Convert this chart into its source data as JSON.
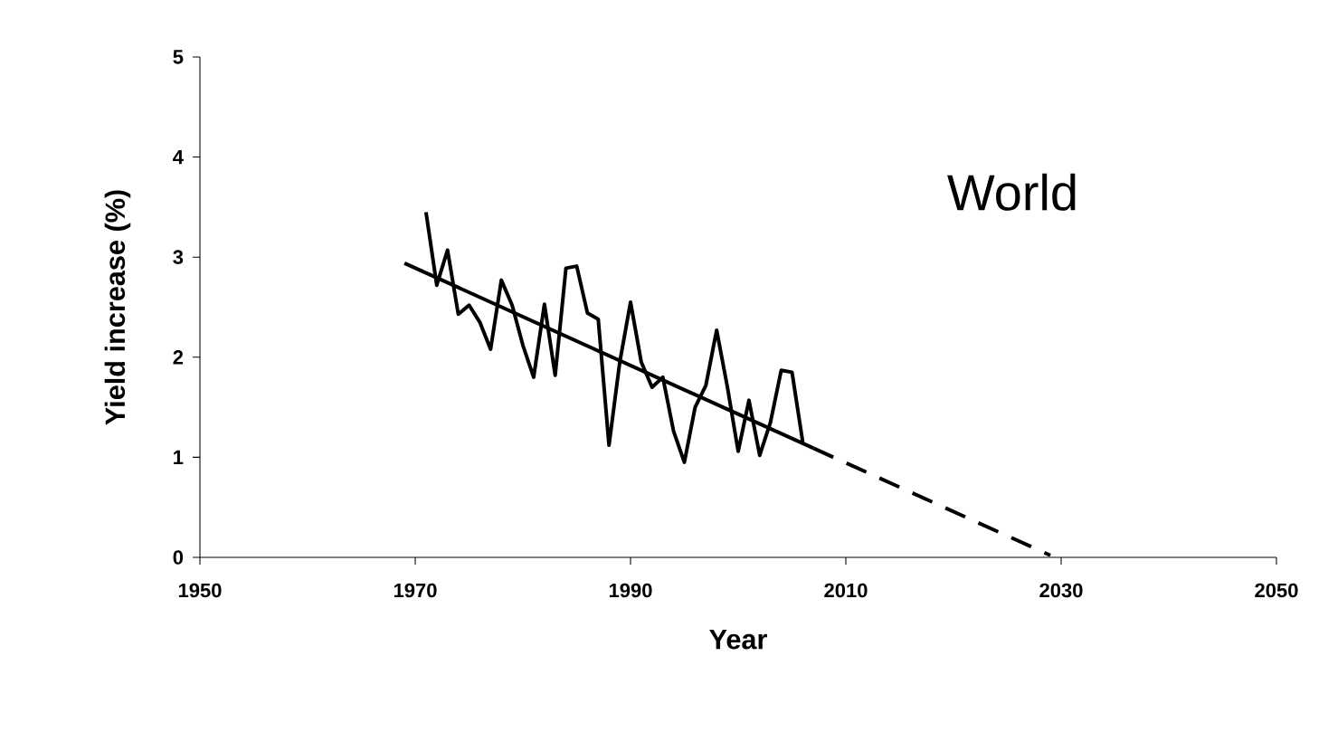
{
  "chart_data": {
    "type": "line",
    "xlabel": "Year",
    "ylabel": "Yield increase (%)",
    "annotations": [
      "World"
    ],
    "xlim": [
      1950,
      2050
    ],
    "ylim": [
      0,
      5
    ],
    "xticks": [
      1950,
      1970,
      1990,
      2010,
      2030,
      2050
    ],
    "yticks": [
      0,
      1,
      2,
      3,
      4,
      5
    ],
    "series": [
      {
        "color": "#000000",
        "line_style": "solid",
        "x": [
          1971,
          1972,
          1973,
          1974,
          1975,
          1976,
          1977,
          1978,
          1979,
          1980,
          1981,
          1982,
          1983,
          1984,
          1985,
          1986,
          1987,
          1988,
          1989,
          1990,
          1991,
          1992,
          1993,
          1994,
          1995,
          1996,
          1997,
          1998,
          1999,
          2000,
          2001,
          2002,
          2003,
          2004,
          2005,
          2006
        ],
        "values": [
          3.45,
          2.72,
          3.07,
          2.43,
          2.52,
          2.35,
          2.08,
          2.77,
          2.52,
          2.12,
          1.8,
          2.53,
          1.82,
          2.89,
          2.91,
          2.44,
          2.38,
          1.12,
          1.95,
          2.55,
          1.95,
          1.7,
          1.8,
          1.26,
          0.95,
          1.5,
          1.72,
          2.27,
          1.7,
          1.06,
          1.57,
          1.02,
          1.35,
          1.87,
          1.85,
          1.15
        ]
      },
      {
        "type": "line",
        "color": "#000000",
        "line_style": "solid",
        "x": [
          1969,
          2007
        ],
        "values": [
          2.94,
          1.09
        ]
      },
      {
        "type": "line",
        "color": "#000000",
        "line_style": "dashed",
        "x": [
          2007,
          2029
        ],
        "values": [
          1.09,
          0.02
        ]
      }
    ]
  }
}
